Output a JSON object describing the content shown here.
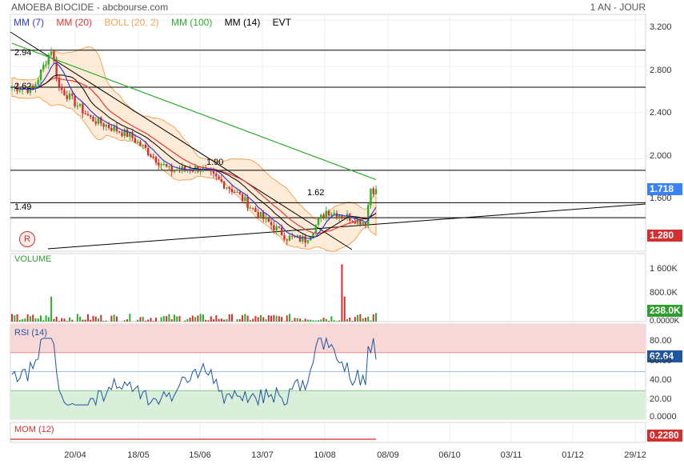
{
  "header": {
    "title": "AMOEBA BIOCIDE - abcbourse.com",
    "period": "1 AN - JOUR"
  },
  "legend": [
    {
      "label": "MM (7)",
      "color": "#2f3fd6"
    },
    {
      "label": "MM (20)",
      "color": "#e53935"
    },
    {
      "label": "BOLL (20, 2)",
      "color": "#f0a45a"
    },
    {
      "label": "MM (100)",
      "color": "#2ab02a"
    },
    {
      "label": "MM (14)",
      "color": "#000000"
    },
    {
      "label": "EVT",
      "color": "#000000"
    }
  ],
  "price_labels": [
    "2.94",
    "2.62",
    "1.90",
    "1.62",
    "1.49"
  ],
  "last_price_tag": "1.718",
  "last_price_tag_color": "#3b82f6",
  "low_price_tag": "1.280",
  "low_price_tag_color": "#d32f2f",
  "event_badge": "R",
  "volume": {
    "title": "VOLUME",
    "last_tag": "238.0K",
    "tag_color": "#2e9e2e"
  },
  "rsi": {
    "title": "RSI (14)",
    "last_tag": "62.64",
    "tag_color": "#1e56a0"
  },
  "mom": {
    "title": "MOM (12)",
    "last_tag": "0.2280",
    "tag_color": "#d32f2f"
  },
  "chart_data": {
    "type": "candlestick",
    "price_axis": {
      "ticks": [
        "3.200",
        "2.800",
        "2.400",
        "2.000",
        "1.600"
      ],
      "range": [
        1.2,
        3.25
      ]
    },
    "volume_axis": {
      "ticks": [
        "1 600K",
        "800.0K",
        "0.0000K"
      ],
      "range": [
        0,
        1900000
      ]
    },
    "rsi_axis": {
      "ticks": [
        "80.00",
        "60.00",
        "40.00",
        "20.00",
        "0.0000"
      ],
      "range": [
        0,
        100
      ]
    },
    "x_ticks": [
      "20/04",
      "18/05",
      "15/06",
      "13/07",
      "10/08",
      "08/09",
      "06/10",
      "03/11",
      "01/12",
      "29/12"
    ],
    "horizontal_levels": [
      2.94,
      2.62,
      1.9,
      1.62,
      1.49
    ],
    "ma7_end": 1.62,
    "ma20_end": 1.52,
    "ma100_end": 1.82,
    "last_close": 1.718,
    "rsi_last": 62.64,
    "mom_last": 0.228,
    "volume_last": 238000,
    "volume_peak": 1600000
  }
}
